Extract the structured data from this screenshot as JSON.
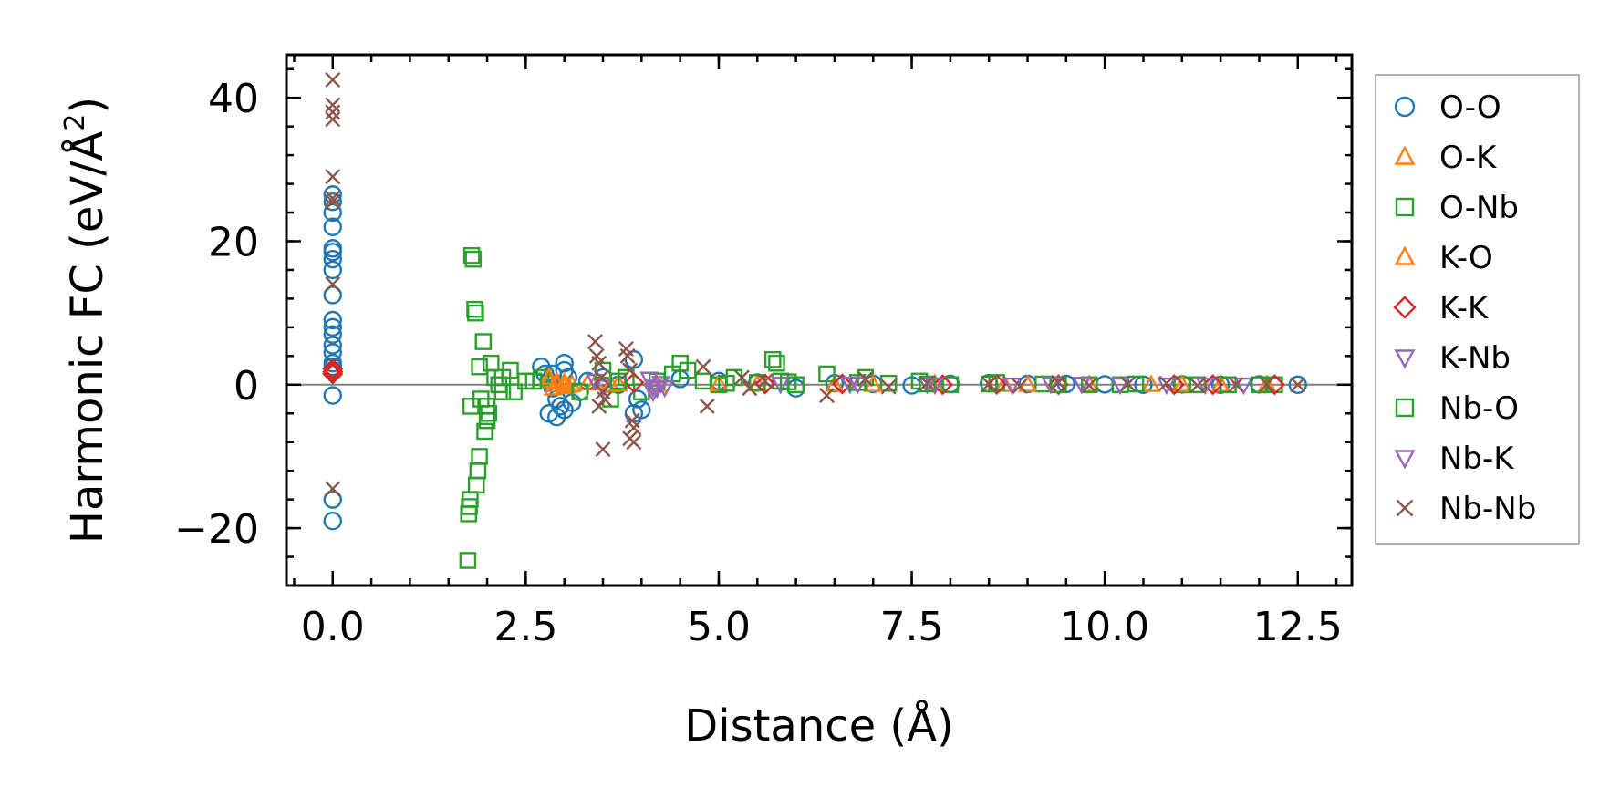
{
  "chart_data": {
    "type": "scatter",
    "title": "",
    "xlabel": "Distance (Å)",
    "ylabel": "Harmonic FC (eV/Å²)",
    "ylabel_parts": {
      "main": "Harmonic FC (eV/Å",
      "sup": "2",
      "close": ")"
    },
    "xlim": [
      -0.6,
      13.2
    ],
    "ylim": [
      -28,
      46
    ],
    "xticks": [
      0.0,
      2.5,
      5.0,
      7.5,
      10.0,
      12.5
    ],
    "xtick_labels": [
      "0.0",
      "2.5",
      "5.0",
      "7.5",
      "10.0",
      "12.5"
    ],
    "yticks": [
      -20,
      0,
      20,
      40
    ],
    "ytick_labels": [
      "−20",
      "0",
      "20",
      "40"
    ],
    "zero_line": 0,
    "grid": false,
    "legend_position": "outside-right",
    "series": [
      {
        "name": "O-O",
        "marker": "circle",
        "color": "#1f77b4",
        "x": [
          0.0,
          0.0,
          0.0,
          0.0,
          0.0,
          0.0,
          0.0,
          0.0,
          0.0,
          0.0,
          0.0,
          0.0,
          0.0,
          0.0,
          0.0,
          0.0,
          0.0,
          0.0,
          0.0,
          0.0,
          2.7,
          2.75,
          2.8,
          2.85,
          2.9,
          2.95,
          3.0,
          3.05,
          2.8,
          2.9,
          3.0,
          3.1,
          3.2,
          2.85,
          3.0,
          3.3,
          3.5,
          3.7,
          3.9,
          4.0,
          3.9,
          3.95,
          4.5,
          5.0,
          5.5,
          6.0,
          6.5,
          7.0,
          7.5,
          8.0,
          8.5,
          9.0,
          9.5,
          10.0,
          10.5,
          11.0,
          11.5,
          12.0,
          12.5
        ],
        "y": [
          26.5,
          25.5,
          24,
          22,
          19,
          18.5,
          17.5,
          16,
          12.5,
          9,
          8,
          7,
          5.5,
          4.5,
          3,
          2.5,
          -1.5,
          -16,
          -19,
          2,
          2.5,
          1.5,
          0.5,
          -0.5,
          -2,
          -3,
          3,
          1,
          -4,
          -4.5,
          -3.5,
          -2.5,
          -1,
          1.5,
          2,
          0.5,
          1,
          0,
          -4,
          -3.5,
          3.5,
          -2,
          0.8,
          0.5,
          0.3,
          -0.5,
          0.2,
          0.1,
          -0.1,
          0.1,
          0.2,
          0.1,
          0.1,
          0.05,
          0,
          0.05,
          0,
          0.05,
          0
        ]
      },
      {
        "name": "O-K",
        "marker": "triangle-up",
        "color": "#ff7f0e",
        "x": [
          2.8,
          2.85,
          2.9,
          3.0,
          3.05,
          3.4,
          3.7,
          4.2,
          5.5,
          6.5,
          7.8,
          8.7,
          9.8,
          10.6,
          11.5,
          12.1
        ],
        "y": [
          0.5,
          -0.5,
          0,
          0.3,
          -0.2,
          0.2,
          0.1,
          0,
          0.1,
          0,
          0.1,
          0,
          0,
          0,
          0,
          0
        ]
      },
      {
        "name": "O-Nb",
        "marker": "square",
        "color": "#2ca02c",
        "x": [
          1.75,
          1.76,
          1.77,
          1.78,
          1.79,
          1.8,
          1.82,
          1.84,
          1.85,
          1.86,
          1.88,
          1.9,
          1.92,
          1.95,
          1.97,
          2.0,
          2.02,
          2.05,
          2.1,
          2.15,
          2.2,
          2.3,
          2.35,
          2.5,
          2.7,
          3.5,
          3.6,
          3.8,
          4.0,
          4.2,
          4.5,
          4.6,
          4.8,
          5.0,
          5.2,
          5.5,
          5.7,
          5.75,
          5.8,
          6.0,
          6.4,
          6.9,
          7.2,
          7.6,
          8.0,
          8.6,
          9.2,
          9.8,
          10.4,
          11.0,
          11.6,
          12.2
        ],
        "y": [
          -24.5,
          -18,
          -17,
          -16,
          -3,
          18,
          17.5,
          10.5,
          10,
          -14,
          -12,
          -10,
          -2,
          6,
          -6.5,
          -5,
          -4,
          3,
          1,
          0,
          -1,
          2,
          -1,
          0.5,
          1,
          2,
          -2,
          1,
          -1,
          0.5,
          3,
          2,
          0.5,
          0,
          1,
          0.3,
          3.5,
          3,
          0.5,
          0,
          1.5,
          1,
          0.2,
          0.5,
          0,
          0.3,
          0.1,
          0,
          0.1,
          0,
          0,
          0
        ]
      },
      {
        "name": "K-O",
        "marker": "triangle-up",
        "color": "#ff7f0e",
        "x": [
          2.8,
          2.9,
          3.0,
          3.1,
          3.3,
          3.6,
          5.0,
          7.0,
          9.0,
          11.0
        ],
        "y": [
          1,
          0.4,
          -0.3,
          0,
          0.2,
          0,
          0.1,
          0,
          0,
          0
        ]
      },
      {
        "name": "K-K",
        "marker": "diamond",
        "color": "#d62728",
        "x": [
          0.0,
          0.0,
          0.0,
          3.9,
          5.6,
          6.6,
          7.9,
          8.6,
          9.4,
          10.9,
          11.4,
          12.2
        ],
        "y": [
          2.2,
          1.8,
          1.5,
          0.3,
          0.1,
          0.1,
          0,
          0.05,
          0,
          0,
          0,
          0
        ]
      },
      {
        "name": "K-Nb",
        "marker": "triangle-down",
        "color": "#9467bd",
        "x": [
          3.4,
          3.5,
          4.15,
          4.2,
          4.25,
          5.8,
          6.7,
          7.7,
          8.8,
          9.7,
          10.8,
          11.8
        ],
        "y": [
          0.5,
          -0.3,
          -0.3,
          -0.5,
          0.2,
          0.1,
          0.1,
          0.1,
          0,
          0.1,
          0,
          0
        ]
      },
      {
        "name": "Nb-O",
        "marker": "square",
        "color": "#2ca02c",
        "x": [
          1.9,
          2.0,
          2.2,
          2.6,
          3.2,
          3.7,
          4.4,
          5.1,
          5.9,
          6.8,
          7.7,
          8.5,
          9.4,
          10.2,
          11.2,
          12.0
        ],
        "y": [
          2.5,
          -3,
          1,
          0.5,
          -1,
          0.5,
          1.5,
          0.2,
          0.4,
          0.3,
          0.1,
          0.1,
          0,
          0,
          0,
          0
        ]
      },
      {
        "name": "Nb-K",
        "marker": "triangle-down",
        "color": "#9467bd",
        "x": [
          4.1,
          4.15,
          4.3,
          6.8,
          7.8,
          9.3,
          10.2,
          11.3
        ],
        "y": [
          0.8,
          -1,
          -0.4,
          0.1,
          0,
          0.1,
          0,
          0
        ]
      },
      {
        "name": "Nb-Nb",
        "marker": "x",
        "color": "#8c564b",
        "x": [
          0.0,
          0.0,
          0.0,
          0.0,
          0.0,
          0.0,
          0.0,
          0.0,
          0.0,
          3.4,
          3.42,
          3.45,
          3.48,
          3.5,
          3.52,
          3.45,
          3.5,
          3.8,
          3.82,
          3.85,
          3.88,
          3.9,
          3.85,
          3.9,
          4.8,
          4.85,
          5.3,
          5.4,
          5.6,
          6.4,
          6.9,
          7.2,
          7.7,
          8.5,
          8.9,
          9.4,
          9.8,
          10.3,
          10.8,
          11.2,
          11.7,
          12.1,
          12.5
        ],
        "y": [
          42.5,
          39,
          38,
          37,
          29,
          26,
          25.5,
          14,
          -14.5,
          6,
          4,
          3,
          1,
          -1,
          -2,
          -3,
          -9,
          5,
          4,
          2,
          -5,
          -6,
          -7.5,
          -8,
          2.5,
          -3,
          1,
          -0.5,
          0.5,
          -1.5,
          0.8,
          -0.3,
          0.2,
          0.1,
          -0.2,
          0.3,
          -0.1,
          0.1,
          0.2,
          -0.1,
          0,
          0.05,
          0
        ]
      }
    ]
  }
}
